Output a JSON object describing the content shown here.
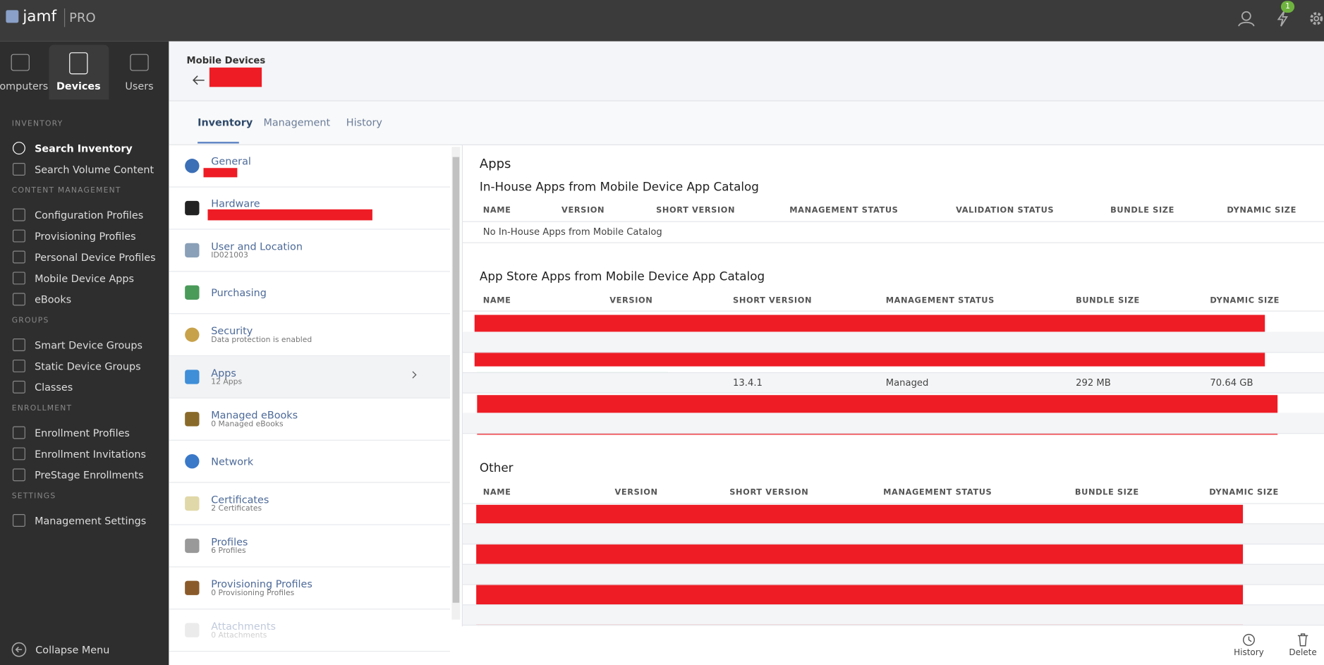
{
  "header": {
    "brand": "jamf",
    "product": "PRO",
    "notification_count": "1"
  },
  "nav_tabs": [
    "Computers",
    "Devices",
    "Users"
  ],
  "sidebar": [
    {
      "heading": "INVENTORY",
      "items": [
        "Search Inventory",
        "Search Volume Content"
      ]
    },
    {
      "heading": "CONTENT MANAGEMENT",
      "items": [
        "Configuration Profiles",
        "Provisioning Profiles",
        "Personal Device Profiles",
        "Mobile Device Apps",
        "eBooks"
      ]
    },
    {
      "heading": "GROUPS",
      "items": [
        "Smart Device Groups",
        "Static Device Groups",
        "Classes"
      ]
    },
    {
      "heading": "ENROLLMENT",
      "items": [
        "Enrollment Profiles",
        "Enrollment Invitations",
        "PreStage Enrollments"
      ]
    },
    {
      "heading": "SETTINGS",
      "items": [
        "Management Settings"
      ]
    }
  ],
  "collapse": "Collapse Menu",
  "breadcrumb": "Mobile Devices",
  "tabs": [
    "Inventory",
    "Management",
    "History"
  ],
  "categories": [
    {
      "title": "General"
    },
    {
      "title": "Hardware"
    },
    {
      "title": "User and Location",
      "subtitle": "ID021003"
    },
    {
      "title": "Purchasing"
    },
    {
      "title": "Security",
      "subtitle": "Data protection is enabled"
    },
    {
      "title": "Apps",
      "subtitle": "12 Apps"
    },
    {
      "title": "Managed eBooks",
      "subtitle": "0 Managed eBooks"
    },
    {
      "title": "Network"
    },
    {
      "title": "Certificates",
      "subtitle": "2 Certificates"
    },
    {
      "title": "Profiles",
      "subtitle": "6 Profiles"
    },
    {
      "title": "Provisioning Profiles",
      "subtitle": "0 Provisioning Profiles"
    },
    {
      "title": "Attachments",
      "subtitle": "0 Attachments"
    }
  ],
  "content": {
    "title": "Apps",
    "sections": [
      {
        "title": "In-House Apps from Mobile Device App Catalog",
        "columns": [
          "NAME",
          "VERSION",
          "SHORT VERSION",
          "MANAGEMENT STATUS",
          "VALIDATION STATUS",
          "BUNDLE SIZE",
          "DYNAMIC SIZE"
        ],
        "empty": "No In-House Apps from Mobile Catalog"
      },
      {
        "title": "App Store Apps from Mobile Device App Catalog",
        "columns": [
          "NAME",
          "VERSION",
          "SHORT VERSION",
          "MANAGEMENT STATUS",
          "BUNDLE SIZE",
          "DYNAMIC SIZE"
        ],
        "row": [
          "13.4.1",
          "Managed",
          "292 MB",
          "70.64 GB"
        ]
      },
      {
        "title": "Other",
        "columns": [
          "NAME",
          "VERSION",
          "SHORT VERSION",
          "MANAGEMENT STATUS",
          "BUNDLE SIZE",
          "DYNAMIC SIZE"
        ]
      }
    ]
  },
  "footer": [
    "History",
    "Delete"
  ]
}
